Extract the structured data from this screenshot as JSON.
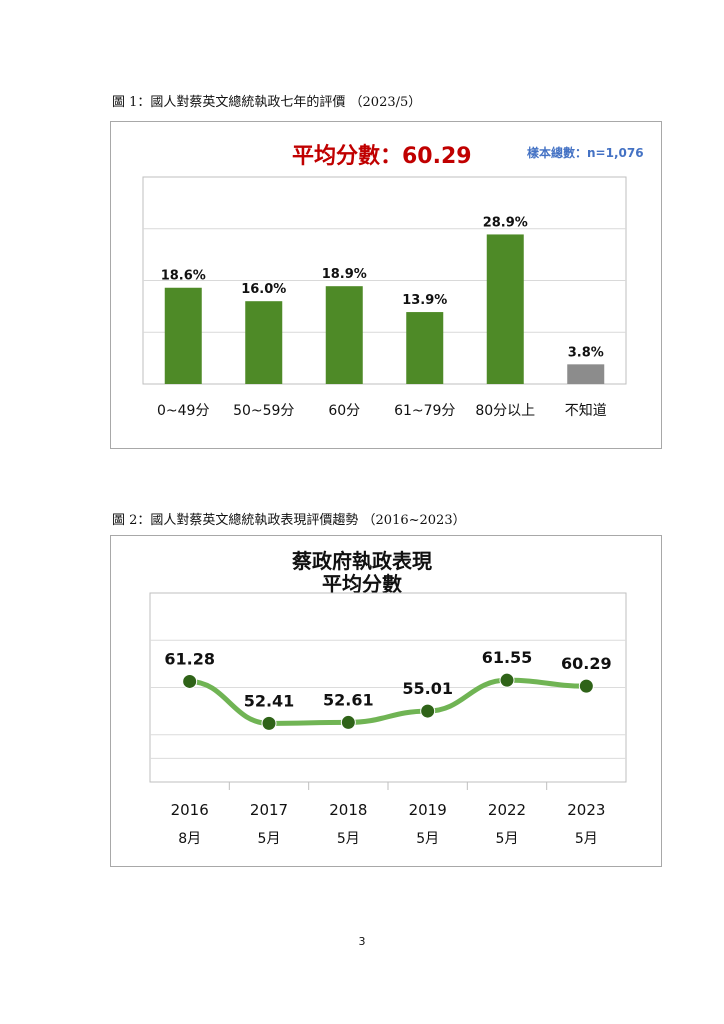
{
  "chart1": {
    "caption": "圖 1：國人對蔡英文總統執政七年的評價 （2023/5）",
    "average_text": "平均分數：60.29",
    "sample_text": "樣本總數：n=1,076",
    "colors": {
      "bar": "#4e8a27",
      "unknown": "#8c8c8c",
      "average": "#c00000",
      "sample": "#4472c4"
    }
  },
  "chart2": {
    "caption": "圖 2：國人對蔡英文總統執政表現評價趨勢 （2016~2023）",
    "title_line1": "蔡政府執政表現",
    "title_line2": "平均分數",
    "colors": {
      "line": "#70b454",
      "marker": "#2f6318"
    }
  },
  "page_number": "3",
  "chart_data": [
    {
      "type": "bar",
      "categories": [
        "0~49分",
        "50~59分",
        "60分",
        "61~79分",
        "80分以上",
        "不知道"
      ],
      "values": [
        18.6,
        16.0,
        18.9,
        13.9,
        28.9,
        3.8
      ],
      "labels": [
        "18.6%",
        "16.0%",
        "18.9%",
        "13.9%",
        "28.9%",
        "3.8%"
      ],
      "title": "平均分數：60.29",
      "ylim": [
        0,
        40
      ],
      "grid": true
    },
    {
      "type": "line",
      "x": [
        "2016",
        "2017",
        "2018",
        "2019",
        "2022",
        "2023"
      ],
      "x_sub": [
        "8月",
        "5月",
        "5月",
        "5月",
        "5月",
        "5月"
      ],
      "values": [
        61.28,
        52.41,
        52.61,
        55.01,
        61.55,
        60.29
      ],
      "labels": [
        "61.28",
        "52.41",
        "52.61",
        "55.01",
        "61.55",
        "60.29"
      ],
      "title": "蔡政府執政表現 平均分數",
      "ylim": [
        40,
        80
      ],
      "grid": true
    }
  ]
}
